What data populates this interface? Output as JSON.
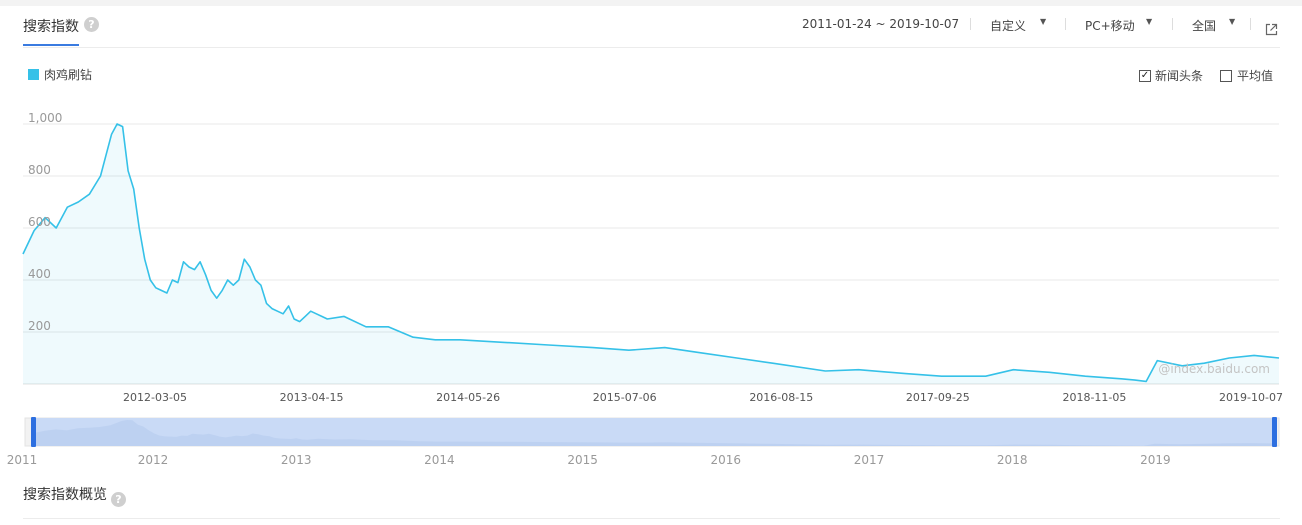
{
  "header": {
    "title": "搜索指数",
    "help": "?",
    "date_range": "2011-01-24 ~ 2019-10-07",
    "custom": "自定义",
    "device": "PC+移动",
    "region": "全国"
  },
  "legend": {
    "series_name": "肉鸡刷钻"
  },
  "options": {
    "news": "新闻头条",
    "average": "平均值",
    "news_checked": "✓"
  },
  "watermark": "@index.baidu.com",
  "footer": {
    "title": "搜索指数概览",
    "help": "?"
  },
  "colors": {
    "line": "#35c1e8",
    "accent": "#3a7be0"
  },
  "icons": [
    "help-icon",
    "caret-down-icon",
    "external-link-icon",
    "checkbox-icon"
  ],
  "chart_data": {
    "type": "area",
    "ylim": [
      0,
      1000
    ],
    "yticks": [
      "200",
      "400",
      "600",
      "800",
      "1,000"
    ],
    "ytick_values": [
      200,
      400,
      600,
      800,
      1000
    ],
    "xticks": [
      "2012-03-05",
      "2013-04-15",
      "2014-05-26",
      "2015-07-06",
      "2016-08-15",
      "2017-09-25",
      "2018-11-05",
      "2019-10-07"
    ],
    "brush_years": [
      "2011",
      "2012",
      "2013",
      "2014",
      "2015",
      "2016",
      "2017",
      "2018",
      "2019"
    ],
    "grid": true,
    "series": [
      {
        "name": "肉鸡刷钻",
        "x": [
          "2011-01-24",
          "2011-02-21",
          "2011-03-21",
          "2011-04-18",
          "2011-05-16",
          "2011-06-13",
          "2011-07-11",
          "2011-08-08",
          "2011-08-22",
          "2011-09-05",
          "2011-09-19",
          "2011-10-03",
          "2011-10-17",
          "2011-10-31",
          "2011-11-14",
          "2011-11-28",
          "2011-12-12",
          "2011-12-26",
          "2012-01-09",
          "2012-01-23",
          "2012-02-06",
          "2012-02-20",
          "2012-03-05",
          "2012-03-19",
          "2012-04-02",
          "2012-04-16",
          "2012-04-30",
          "2012-05-14",
          "2012-05-28",
          "2012-06-11",
          "2012-06-25",
          "2012-07-09",
          "2012-07-23",
          "2012-08-06",
          "2012-08-20",
          "2012-09-03",
          "2012-09-17",
          "2012-10-01",
          "2012-10-15",
          "2012-10-29",
          "2012-11-12",
          "2012-11-26",
          "2012-12-10",
          "2012-12-24",
          "2013-01-07",
          "2013-01-21",
          "2013-02-04",
          "2013-02-18",
          "2013-03-04",
          "2013-04-15",
          "2013-06-10",
          "2013-08-05",
          "2013-10-07",
          "2013-12-02",
          "2014-02-03",
          "2014-05-26",
          "2014-09-15",
          "2015-01-05",
          "2015-04-06",
          "2015-07-06",
          "2015-10-05",
          "2016-01-04",
          "2016-04-04",
          "2016-08-15",
          "2016-11-07",
          "2017-03-06",
          "2017-06-05",
          "2017-09-25",
          "2017-12-04",
          "2018-03-05",
          "2018-06-04",
          "2018-09-03",
          "2018-10-08",
          "2018-11-05",
          "2018-12-03",
          "2019-02-04",
          "2019-04-01",
          "2019-06-03",
          "2019-08-05",
          "2019-10-07"
        ],
        "values": [
          500,
          590,
          640,
          600,
          680,
          700,
          730,
          800,
          880,
          960,
          1000,
          990,
          820,
          750,
          600,
          480,
          400,
          370,
          360,
          350,
          400,
          390,
          470,
          450,
          440,
          470,
          420,
          360,
          330,
          360,
          400,
          380,
          400,
          480,
          450,
          400,
          380,
          310,
          290,
          280,
          270,
          300,
          250,
          240,
          260,
          280,
          270,
          260,
          250,
          260,
          220,
          220,
          180,
          170,
          170,
          160,
          150,
          140,
          130,
          140,
          120,
          100,
          80,
          50,
          55,
          40,
          30,
          30,
          55,
          45,
          30,
          20,
          15,
          10,
          90,
          70,
          80,
          100,
          110,
          100
        ]
      }
    ]
  }
}
